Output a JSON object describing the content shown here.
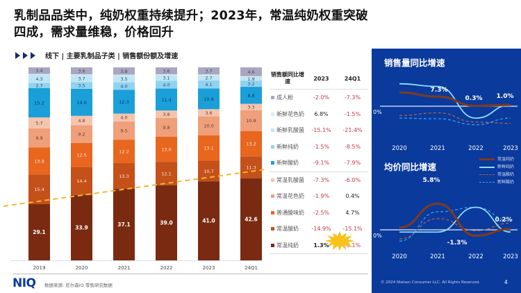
{
  "page": {
    "title": "乳制品品类中，纯奶权重持续提升；2023年，常温纯奶权重突破四成，需求量维稳，价格回升",
    "subtitle": "线下 | 主要乳制品子类 | 销售额份额及增速",
    "footer_source": "数据来源: 尼尔森IQ 零售研究数据",
    "logo": "NIQ",
    "copyright": "© 2024 Nielsen Consumer LLC. All Rights Reserved.",
    "page_number": "4"
  },
  "table": {
    "header": {
      "col0": "销售额同比增速",
      "col1": "2023",
      "col2": "24Q1"
    },
    "rows": [
      {
        "label": "成人粉",
        "color": "#a9a7c0",
        "v2023": "-2.0%",
        "v24q1": "-7.3%"
      },
      {
        "label": "新鲜花色奶",
        "color": "#d6eef8",
        "v2023": "6.8%",
        "v24q1": "-1.5%"
      },
      {
        "label": "新鲜乳酸菌",
        "color": "#bfe6f5",
        "v2023": "-15.1%",
        "v24q1": "-21.4%"
      },
      {
        "label": "新鲜纯奶",
        "color": "#8fd3f0",
        "v2023": "-1.5%",
        "v24q1": "-8.5%"
      },
      {
        "label": "新鲜酸奶",
        "color": "#1a9fd8",
        "v2023": "-9.1%",
        "v24q1": "-7.9%"
      },
      {
        "label": "常温乳酸菌",
        "color": "#f5c4ad",
        "v2023": "-7.3%",
        "v24q1": "-6.0%"
      },
      {
        "label": "常温花色奶",
        "color": "#ef9f7a",
        "v2023": "-1.9%",
        "v24q1": "0.4%"
      },
      {
        "label": "普通酸味奶",
        "color": "#e8661e",
        "v2023": "-2.5%",
        "v24q1": "4.7%"
      },
      {
        "label": "常温酸奶",
        "color": "#c4501a",
        "v2023": "-14.9%",
        "v24q1": "-15.1%"
      },
      {
        "label": "常温纯奶",
        "color": "#7a2a10",
        "v2023": "1.3%",
        "v24q1": "-6.1%"
      }
    ]
  },
  "chart_data": [
    {
      "type": "bar",
      "stacked": true,
      "title": "线下 | 主要乳制品子类 | 销售额份额及增速",
      "categories": [
        "2019",
        "2020",
        "2021",
        "2022",
        "2023",
        "24Q1"
      ],
      "ylim": [
        0,
        100
      ],
      "series": [
        {
          "name": "常温纯奶",
          "color": "#7a2a10",
          "values": [
            29.1,
            33.9,
            37.1,
            39.0,
            41.0,
            42.6
          ]
        },
        {
          "name": "常温酸奶",
          "color": "#c4501a",
          "values": [
            15.4,
            14.4,
            13.3,
            12.1,
            10.7,
            11.3
          ]
        },
        {
          "name": "普通酸味奶",
          "color": "#e8661e",
          "values": [
            13.9,
            12.5,
            12.2,
            13.0,
            13.1,
            13.2
          ]
        },
        {
          "name": "常温花色奶",
          "color": "#ef9f7a",
          "values": [
            9.9,
            9.2,
            9.5,
            9.8,
            10.0,
            10.8
          ]
        },
        {
          "name": "常温乳酸菌",
          "color": "#f5c4ad",
          "values": [
            5.7,
            4.8,
            4.0,
            3.8,
            3.6,
            3.3
          ]
        },
        {
          "name": "新鲜酸奶",
          "color": "#1a9fd8",
          "values": [
            15.2,
            14.0,
            12.3,
            11.4,
            10.8,
            8.8
          ]
        },
        {
          "name": "新鲜纯奶",
          "color": "#8fd3f0",
          "values": [
            2.7,
            3.5,
            4.0,
            4.0,
            4.1,
            3.2
          ]
        },
        {
          "name": "新鲜乳酸菌",
          "color": "#bfe6f5",
          "values": [
            4.3,
            3.7,
            3.5,
            3.1,
            2.7,
            1.9
          ]
        },
        {
          "name": "新鲜花色奶",
          "color": "#d6eef8",
          "values": [
            0.3,
            0.3,
            0.4,
            0.3,
            0.4,
            0.4
          ]
        },
        {
          "name": "成人粉",
          "color": "#a9a7c0",
          "values": [
            3.4,
            3.6,
            3.8,
            3.6,
            3.7,
            4.6
          ]
        }
      ],
      "annotations": [
        "常温纯奶份额上升趋势线 (虚线)"
      ]
    },
    {
      "type": "line",
      "title": "销售量同比增速",
      "x": [
        "2020",
        "2021",
        "2022",
        "2023"
      ],
      "zero_label": "0%",
      "series": [
        {
          "name": "常温纯奶",
          "style": "solid-thick",
          "color": "#7a3a22",
          "values": [
            10.5,
            7.3,
            0.3,
            1.0
          ]
        },
        {
          "name": "新鲜纯奶",
          "style": "solid",
          "color": "#8fdcf5",
          "values": [
            17,
            15,
            -9,
            1
          ]
        },
        {
          "name": "常温酸奶",
          "style": "dashed",
          "color": "#b0604a",
          "values": [
            -7,
            -5,
            -12,
            -13
          ]
        },
        {
          "name": "新鲜酸奶",
          "style": "dashed",
          "color": "#3aa0ee",
          "values": [
            -9,
            -9.5,
            -14,
            -9
          ]
        }
      ],
      "data_labels": [
        "7.3%",
        "0.3%",
        "1.0%"
      ]
    },
    {
      "type": "line",
      "title": "均价同比增速",
      "x": [
        "2020",
        "2021",
        "2022",
        "2023"
      ],
      "zero_label": "0%",
      "series": [
        {
          "name": "常温纯奶",
          "style": "solid-thick",
          "color": "#7a3a22",
          "values": [
            0.5,
            5.8,
            -1.3,
            0.2
          ]
        },
        {
          "name": "新鲜纯奶",
          "style": "solid",
          "color": "#8fdcf5",
          "values": [
            -0.5,
            -0.5,
            5.0,
            -0.5
          ]
        },
        {
          "name": "常温酸奶",
          "style": "dashed",
          "color": "#b0604a",
          "values": [
            -2.0,
            2.5,
            -0.2,
            1.5
          ]
        },
        {
          "name": "新鲜酸奶",
          "style": "dashed",
          "color": "#3aa0ee",
          "values": [
            -2.5,
            4.0,
            5.0,
            2.0
          ]
        }
      ],
      "data_labels": [
        "5.8%",
        "-1.3%",
        "0.2%"
      ],
      "legend": [
        "常温纯奶",
        "新鲜纯奶",
        "常温酸奶",
        "新鲜酸奶"
      ],
      "legend_position": "top-right"
    }
  ]
}
